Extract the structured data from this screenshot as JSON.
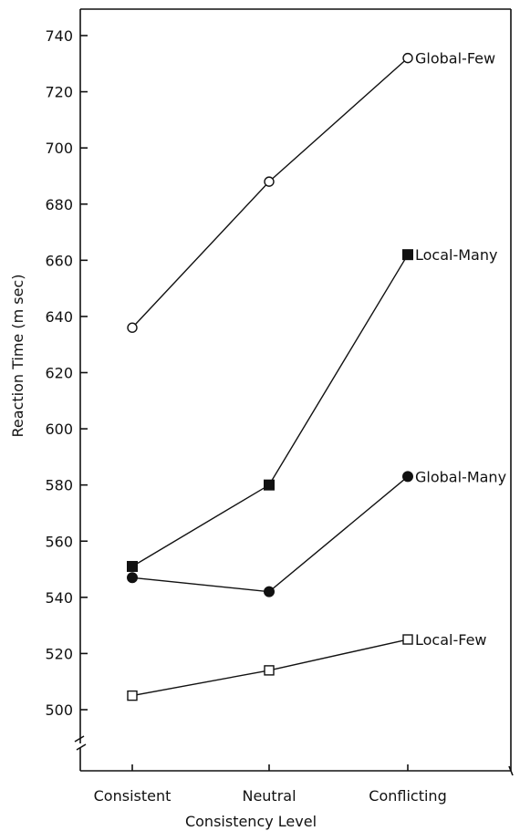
{
  "chart_data": {
    "type": "line",
    "xlabel": "Consistency Level",
    "ylabel": "Reaction Time (m sec)",
    "categories": [
      "Consistent",
      "Neutral",
      "Conflicting"
    ],
    "y_ticks": [
      500,
      520,
      540,
      560,
      580,
      600,
      620,
      640,
      660,
      680,
      700,
      720,
      740
    ],
    "ylim": [
      490,
      750
    ],
    "axis_break": true,
    "grid": false,
    "legend": "labels at line ends",
    "series": [
      {
        "name": "Global-Few",
        "marker": "open-circle",
        "values": [
          636,
          688,
          732
        ]
      },
      {
        "name": "Local-Many",
        "marker": "filled-square",
        "values": [
          551,
          580,
          662
        ]
      },
      {
        "name": "Global-Many",
        "marker": "filled-circle",
        "values": [
          547,
          542,
          583
        ]
      },
      {
        "name": "Local-Few",
        "marker": "open-square",
        "values": [
          505,
          514,
          525
        ]
      }
    ]
  }
}
